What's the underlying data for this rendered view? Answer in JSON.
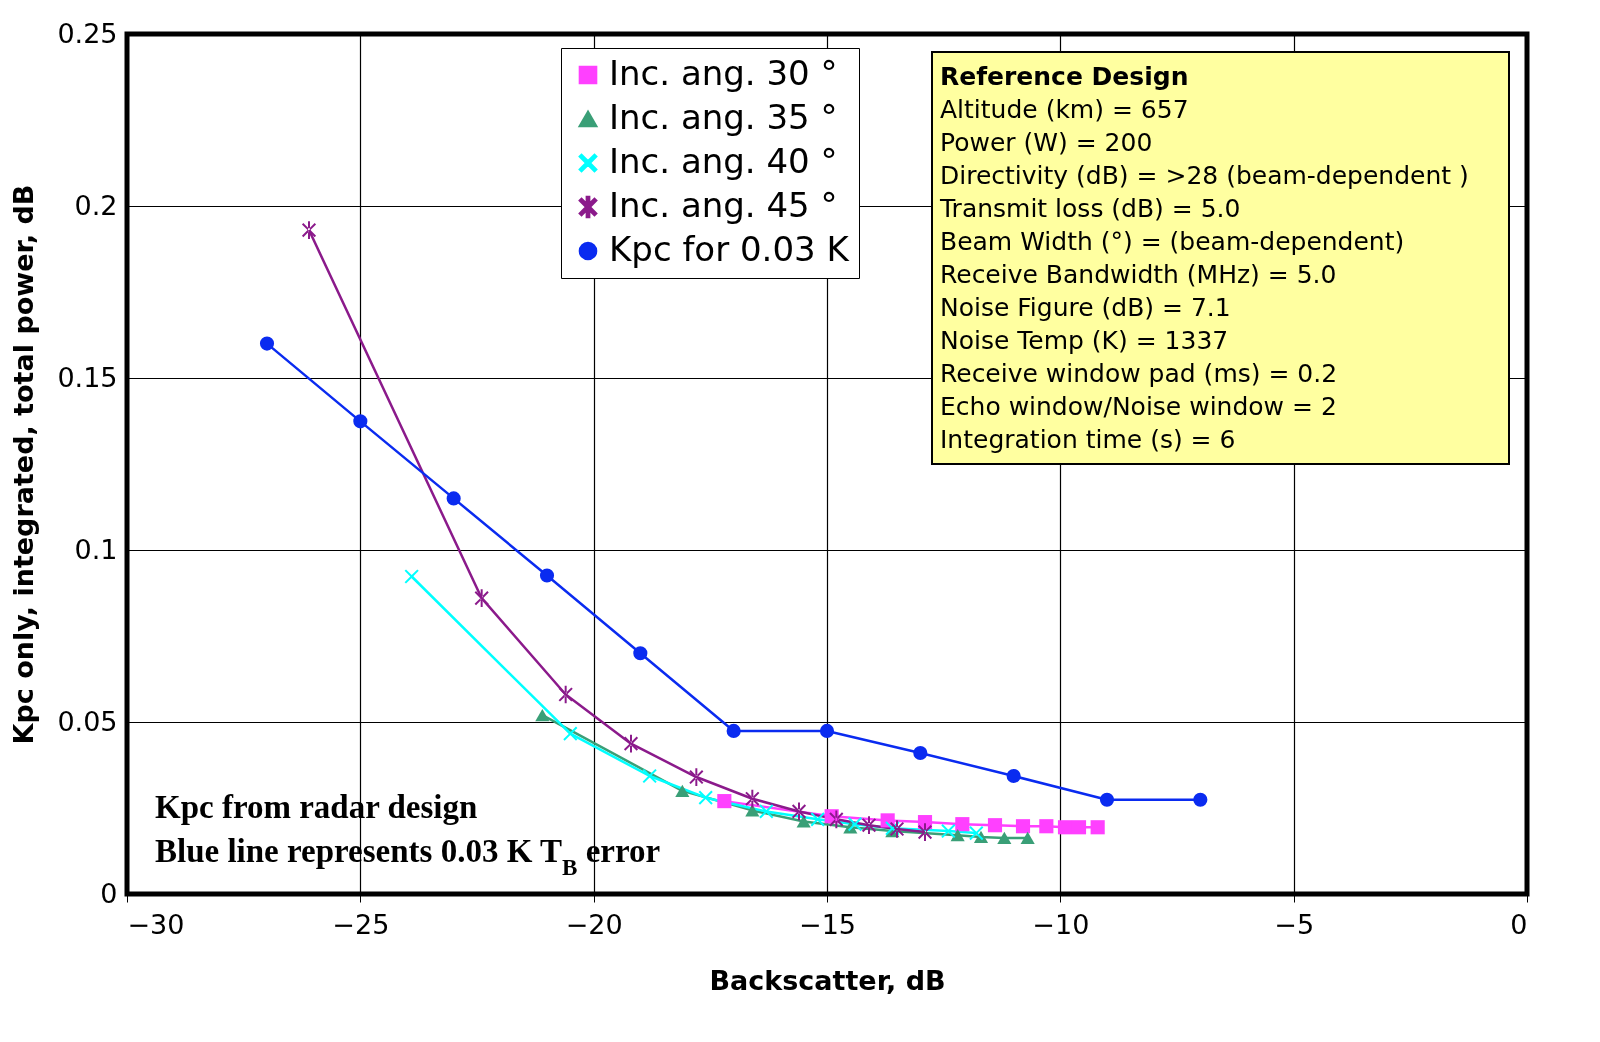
{
  "chart_data": {
    "type": "line",
    "xlabel": "Backscatter, dB",
    "ylabel": "Kpc only, integrated, total power, dB",
    "xlim": [
      -30,
      0
    ],
    "xticks": [
      -30,
      -25,
      -20,
      -15,
      -10,
      -5,
      0
    ],
    "ylim": [
      0,
      0.25
    ],
    "yticks": [
      0,
      0.05,
      0.1,
      0.15,
      0.2,
      0.25
    ],
    "grid": true,
    "legend": "top",
    "series": [
      {
        "name": "Inc. ang. 30 °",
        "color": "#ff40ff",
        "marker": "square",
        "x": [
          -17.2,
          -14.9,
          -13.7,
          -12.9,
          -12.1,
          -11.4,
          -10.8,
          -10.3,
          -9.9,
          -9.6,
          -9.2
        ],
        "values": [
          0.027,
          0.0226,
          0.0214,
          0.0209,
          0.0203,
          0.02,
          0.0197,
          0.0197,
          0.0194,
          0.0194,
          0.0194
        ]
      },
      {
        "name": "Inc. ang. 35 °",
        "color": "#3a9f77",
        "marker": "triangle",
        "x": [
          -21.1,
          -18.1,
          -16.6,
          -15.5,
          -14.5,
          -13.6,
          -12.2,
          -11.7,
          -11.2,
          -10.7
        ],
        "values": [
          0.052,
          0.03,
          0.0243,
          0.0211,
          0.0194,
          0.0183,
          0.0171,
          0.0166,
          0.0163,
          0.0163
        ]
      },
      {
        "name": "Inc. ang. 40 °",
        "color": "#00ffff",
        "marker": "cross",
        "x": [
          -23.9,
          -20.5,
          -18.8,
          -17.6,
          -16.3,
          -15.2,
          -14.4,
          -13.6,
          -12.4,
          -11.8
        ],
        "values": [
          0.0923,
          0.0466,
          0.0343,
          0.028,
          0.024,
          0.0217,
          0.0203,
          0.0191,
          0.0183,
          0.0177
        ]
      },
      {
        "name": "Inc. ang. 45 °",
        "color": "#8b1a8b",
        "marker": "star",
        "x": [
          -26.1,
          -22.4,
          -20.6,
          -19.2,
          -17.8,
          -16.6,
          -15.6,
          -14.8,
          -14.1,
          -13.5,
          -12.9
        ],
        "values": [
          0.193,
          0.086,
          0.058,
          0.0437,
          0.034,
          0.0277,
          0.024,
          0.0217,
          0.02,
          0.0189,
          0.018
        ]
      },
      {
        "name": "Kpc for 0.03 K",
        "color": "#0a2bf0",
        "marker": "circle",
        "x": [
          -27,
          -25,
          -23,
          -21,
          -19,
          -17,
          -15,
          -13,
          -11,
          -9,
          -7
        ],
        "values": [
          0.16,
          0.1374,
          0.115,
          0.0926,
          0.07,
          0.0474,
          0.0474,
          0.041,
          0.0343,
          0.0274,
          0.0274
        ]
      }
    ],
    "annotations": [
      "Reference Design",
      "Altitude (km)    = 657",
      "Power (W)        = 200",
      "Directivity (dB) = >28 (beam-dependent )",
      "Transmit loss (dB) = 5.0",
      "Beam Width (°) = (beam-dependent)",
      "Receive Bandwidth (MHz) = 5.0",
      "Noise Figure (dB) = 7.1",
      "Noise Temp (K)  = 1337",
      "Receive window pad (ms) = 0.2",
      "Echo window/Noise window = 2",
      "Integration time (s) = 6",
      "Kpc from radar design",
      "Blue line represents 0.03 K T$_{B}$ error"
    ]
  }
}
